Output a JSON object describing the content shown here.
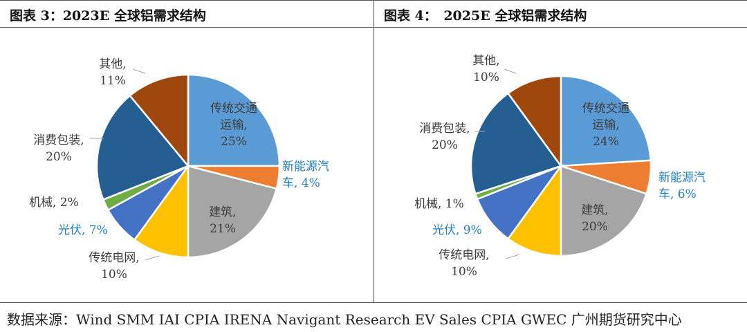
{
  "chart_data": [
    {
      "type": "pie",
      "title": "图表 3：2023E 全球铝需求结构",
      "categories": [
        "传统交通运输",
        "新能源汽车",
        "建筑",
        "传统电网",
        "光伏",
        "机械",
        "消费包装",
        "其他"
      ],
      "values": [
        25,
        4,
        21,
        10,
        7,
        2,
        20,
        11
      ],
      "labels": [
        [
          "传统交通",
          "运输,",
          "25%"
        ],
        [
          "新能源汽",
          "车, 4%"
        ],
        [
          "建筑,",
          "21%"
        ],
        [
          "传统电网,",
          "10%"
        ],
        [
          "光伏, 7%"
        ],
        [
          "机械, 2%"
        ],
        [
          "消费包装,",
          "20%"
        ],
        [
          "其他,",
          "11%"
        ]
      ],
      "colors": [
        "#5b9bd5",
        "#ed7d31",
        "#a5a5a5",
        "#ffc000",
        "#4472c4",
        "#70ad47",
        "#255e91",
        "#9e480e"
      ],
      "highlight_color": "#1f7fc4"
    },
    {
      "type": "pie",
      "title": "图表 4：　2025E 全球铝需求结构",
      "categories": [
        "传统交通运输",
        "新能源汽车",
        "建筑",
        "传统电网",
        "光伏",
        "机械",
        "消费包装",
        "其他"
      ],
      "values": [
        24,
        6,
        20,
        10,
        9,
        1,
        20,
        10
      ],
      "labels": [
        [
          "传统交通",
          "运输,",
          "24%"
        ],
        [
          "新能源汽",
          "车, 6%"
        ],
        [
          "建筑,",
          "20%"
        ],
        [
          "传统电网,",
          "10%"
        ],
        [
          "光伏, 9%"
        ],
        [
          "机械, 1%"
        ],
        [
          "消费包装,",
          "20%"
        ],
        [
          "其他,",
          "10%"
        ]
      ],
      "colors": [
        "#5b9bd5",
        "#ed7d31",
        "#a5a5a5",
        "#ffc000",
        "#4472c4",
        "#70ad47",
        "#255e91",
        "#9e480e"
      ],
      "highlight_color": "#1f7fc4"
    }
  ],
  "source": "数据来源：Wind SMM IAI CPIA IRENA Navigant Research EV Sales CPIA GWEC  广州期货研究中心"
}
